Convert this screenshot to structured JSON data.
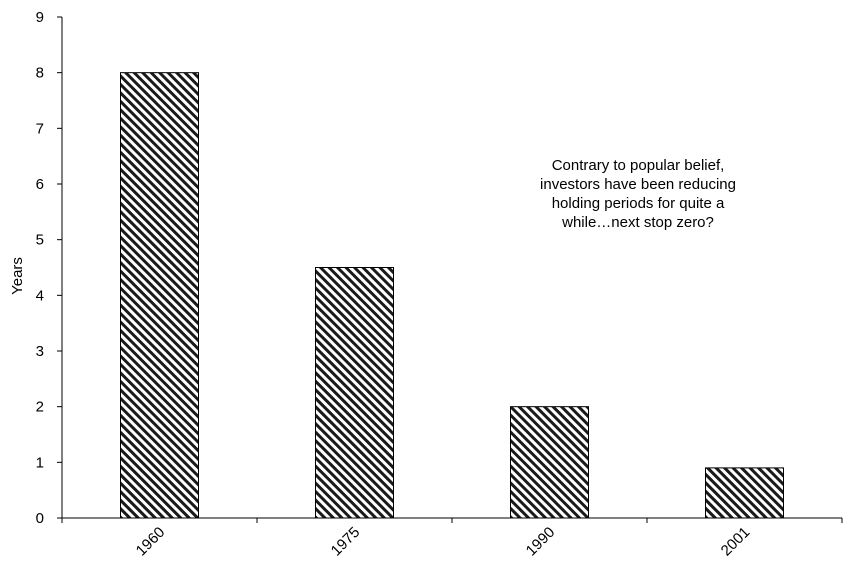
{
  "chart_data": {
    "type": "bar",
    "title": "",
    "xlabel": "",
    "ylabel": "Years",
    "categories": [
      "1960",
      "1975",
      "1990",
      "2001"
    ],
    "values": [
      8.0,
      4.5,
      2.0,
      0.9
    ],
    "ylim": [
      0,
      9
    ],
    "yticks": [
      "0",
      "1",
      "2",
      "3",
      "4",
      "5",
      "6",
      "7",
      "8",
      "9"
    ],
    "grid": false,
    "legend": "none",
    "bar_fill": "diagonal-hatch",
    "bar_stroke_color": "#000000",
    "annotation_lines": [
      "Contrary to popular belief,",
      "investors have been reducing",
      "holding periods for quite a",
      "while…next stop zero?"
    ]
  }
}
